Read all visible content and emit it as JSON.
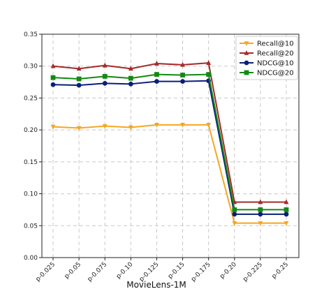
{
  "chart_data": {
    "type": "line",
    "xlabel": "MovieLens-1M",
    "ylabel": "",
    "categories": [
      "p-0.025",
      "p-0.05",
      "p-0.075",
      "p-0.10",
      "p-0.125",
      "p-0.15",
      "p-0.175",
      "p-0.20",
      "p-0.225",
      "p-0.25"
    ],
    "ylim": [
      0,
      0.35
    ],
    "yticks": [
      "0.00",
      "0.05",
      "0.10",
      "0.15",
      "0.20",
      "0.25",
      "0.30",
      "0.35"
    ],
    "grid": true,
    "legend_position": "top-right",
    "series": [
      {
        "name": "Recall@10",
        "color": "#f5a623",
        "marker": "triangle-down",
        "values": [
          0.205,
          0.203,
          0.206,
          0.204,
          0.208,
          0.208,
          0.208,
          0.054,
          0.054,
          0.054
        ]
      },
      {
        "name": "Recall@20",
        "color": "#a52a2a",
        "marker": "triangle-up",
        "values": [
          0.3,
          0.296,
          0.301,
          0.296,
          0.304,
          0.302,
          0.305,
          0.087,
          0.087,
          0.087
        ]
      },
      {
        "name": "NDCG@10",
        "color": "#0b1f7a",
        "marker": "circle",
        "values": [
          0.271,
          0.27,
          0.273,
          0.272,
          0.276,
          0.276,
          0.277,
          0.068,
          0.068,
          0.068
        ]
      },
      {
        "name": "NDCG@20",
        "color": "#138a13",
        "marker": "square",
        "values": [
          0.282,
          0.28,
          0.284,
          0.281,
          0.287,
          0.286,
          0.287,
          0.075,
          0.075,
          0.075
        ]
      }
    ]
  }
}
